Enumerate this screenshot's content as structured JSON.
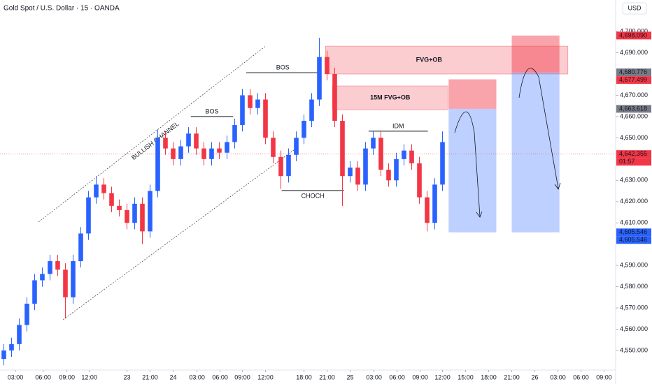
{
  "chart_data": {
    "type": "candlestick",
    "title": "Gold Spot / U.S. Dollar · 15 · OANDA",
    "currency": "USD",
    "up_color": "#2962ff",
    "down_color": "#f23645",
    "open": [
      4546,
      4550,
      4553,
      4562,
      4572,
      4583,
      4586,
      4592,
      4588,
      4575,
      4592,
      4605,
      4622,
      4628,
      4624,
      4618,
      4616,
      4610,
      4619,
      4606,
      4625,
      4650,
      4645,
      4640,
      4646,
      4652,
      4645,
      4640,
      4645,
      4643,
      4648,
      4656,
      4670,
      4664,
      4668,
      4650,
      4641,
      4632,
      4642,
      4650,
      4658,
      4668,
      4688,
      4680,
      4658,
      4632,
      4636,
      4628,
      4645,
      4650,
      4635,
      4630,
      4640,
      4644,
      4638,
      4622,
      4610,
      4628
    ],
    "high": [
      4553,
      4556,
      4565,
      4575,
      4586,
      4589,
      4595,
      4595,
      4591,
      4595,
      4608,
      4625,
      4632,
      4631,
      4627,
      4621,
      4619,
      4622,
      4622,
      4628,
      4654,
      4653,
      4648,
      4649,
      4655,
      4655,
      4648,
      4648,
      4648,
      4651,
      4659,
      4673,
      4673,
      4671,
      4671,
      4653,
      4644,
      4645,
      4653,
      4661,
      4671,
      4697,
      4691,
      4683,
      4661,
      4639,
      4639,
      4648,
      4653,
      4653,
      4638,
      4643,
      4647,
      4647,
      4641,
      4625,
      4631,
      4653
    ],
    "low": [
      4543,
      4547,
      4550,
      4559,
      4569,
      4580,
      4583,
      4585,
      4565,
      4572,
      4589,
      4602,
      4619,
      4621,
      4615,
      4613,
      4607,
      4607,
      4600,
      4603,
      4622,
      4642,
      4637,
      4637,
      4643,
      4642,
      4637,
      4637,
      4640,
      4640,
      4645,
      4653,
      4661,
      4661,
      4647,
      4638,
      4626,
      4629,
      4639,
      4647,
      4655,
      4665,
      4677,
      4655,
      4618,
      4629,
      4625,
      4625,
      4642,
      4632,
      4627,
      4627,
      4637,
      4635,
      4619,
      4606,
      4607,
      4625
    ],
    "close": [
      4550,
      4553,
      4562,
      4572,
      4583,
      4586,
      4592,
      4588,
      4575,
      4592,
      4605,
      4622,
      4628,
      4624,
      4618,
      4616,
      4610,
      4619,
      4606,
      4625,
      4650,
      4645,
      4640,
      4646,
      4652,
      4645,
      4640,
      4645,
      4643,
      4648,
      4656,
      4670,
      4664,
      4668,
      4650,
      4641,
      4632,
      4642,
      4650,
      4658,
      4668,
      4688,
      4680,
      4658,
      4632,
      4636,
      4628,
      4645,
      4650,
      4635,
      4630,
      4640,
      4644,
      4638,
      4622,
      4610,
      4628,
      4648
    ],
    "xlim": [
      0,
      80
    ],
    "ylim": [
      4540.8,
      4714.8
    ],
    "xticks": [
      {
        "value": 2,
        "label": "03:00"
      },
      {
        "value": 5.6,
        "label": "06:00"
      },
      {
        "value": 8.7,
        "label": "09:00"
      },
      {
        "value": 11.6,
        "label": "12:00"
      },
      {
        "value": 16.5,
        "label": "23"
      },
      {
        "value": 19.5,
        "label": "21:00"
      },
      {
        "value": 22.5,
        "label": "24"
      },
      {
        "value": 25.6,
        "label": "03:00"
      },
      {
        "value": 28.6,
        "label": "06:00"
      },
      {
        "value": 31.5,
        "label": "09:00"
      },
      {
        "value": 34.5,
        "label": "12:00"
      },
      {
        "value": 39.5,
        "label": "18:00"
      },
      {
        "value": 42.5,
        "label": "21:00"
      },
      {
        "value": 45.5,
        "label": "25"
      },
      {
        "value": 48.6,
        "label": "03:00"
      },
      {
        "value": 51.6,
        "label": "06:00"
      },
      {
        "value": 54.6,
        "label": "09:00"
      },
      {
        "value": 57.5,
        "label": "12:00"
      },
      {
        "value": 60.5,
        "label": "15:00"
      },
      {
        "value": 63.5,
        "label": "18:00"
      },
      {
        "value": 66.5,
        "label": "21:00"
      },
      {
        "value": 69.5,
        "label": "26"
      },
      {
        "value": 72.5,
        "label": "03:00"
      },
      {
        "value": 75.5,
        "label": "06:00"
      },
      {
        "value": 78.5,
        "label": "09:00"
      }
    ],
    "yticks": [
      {
        "value": 4700,
        "label": "4,700.000"
      },
      {
        "value": 4690,
        "label": "4,690.000"
      },
      {
        "value": 4670,
        "label": "4,670.000"
      },
      {
        "value": 4660,
        "label": "4,660.000"
      },
      {
        "value": 4650,
        "label": "4,650.000"
      },
      {
        "value": 4630,
        "label": "4,630.000"
      },
      {
        "value": 4620,
        "label": "4,620.000"
      },
      {
        "value": 4610,
        "label": "4,610.000"
      },
      {
        "value": 4590,
        "label": "4,590.000"
      },
      {
        "value": 4580,
        "label": "4,580.000"
      },
      {
        "value": 4570,
        "label": "4,570.000"
      },
      {
        "value": 4560,
        "label": "4,560.000"
      },
      {
        "value": 4550,
        "label": "4,550.000"
      }
    ],
    "zones": [
      {
        "label": "FVG+OB",
        "x": [
          42.3,
          73.8
        ],
        "y": [
          4680.0,
          4693.1
        ]
      },
      {
        "label": "15M FVG+OB",
        "x": [
          43.2,
          58.2
        ],
        "y": [
          4663.2,
          4674.4
        ]
      }
    ],
    "positions": [
      {
        "x": [
          58.3,
          64.5
        ],
        "entry": 4663.618,
        "stop": 4677.499,
        "target": 4605.546
      },
      {
        "x": [
          66.5,
          72.7
        ],
        "entry": 4680.776,
        "stop": 4698.09,
        "target": 4605.546
      }
    ],
    "levels": [
      {
        "label": "BOS",
        "x": [
          32,
          41.5
        ],
        "y": 4680.6,
        "label_side": "above"
      },
      {
        "label": "BOS",
        "x": [
          24.8,
          30.3
        ],
        "y": 4660,
        "label_side": "above"
      },
      {
        "label": "CHOCH",
        "x": [
          36.6,
          44.7
        ],
        "y": 4625.2,
        "label_side": "below"
      },
      {
        "label": "IDM",
        "x": [
          47.9,
          55.6
        ],
        "y": 4653.1,
        "label_side": "above"
      }
    ],
    "channel": {
      "label": "BULLISH CHANNEL",
      "upper": {
        "x": [
          5,
          34.5
        ],
        "y": [
          4610.4,
          4693.1
        ]
      },
      "lower": {
        "x": [
          8.2,
          38.2
        ],
        "y": [
          4564.5,
          4644.3
        ]
      }
    },
    "price_tags": [
      {
        "value": 4698.09,
        "label": "4,698.090",
        "color": "#f23645"
      },
      {
        "value": 4680.776,
        "label": "4,680.776",
        "color": "#787b86"
      },
      {
        "value": 4677.499,
        "label": "4,677.499",
        "color": "#f23645"
      },
      {
        "value": 4663.618,
        "label": "4,663.618",
        "color": "#787b86"
      },
      {
        "value": 4642.355,
        "label": "4,642.355",
        "color": "#f23645",
        "line": true
      },
      {
        "value": 4605.546,
        "label": "4,605.546",
        "color": "#2962ff"
      },
      {
        "value": 4605.546,
        "label": "4,605.546",
        "color": "#2962ff"
      }
    ],
    "countdown": "01:57"
  }
}
